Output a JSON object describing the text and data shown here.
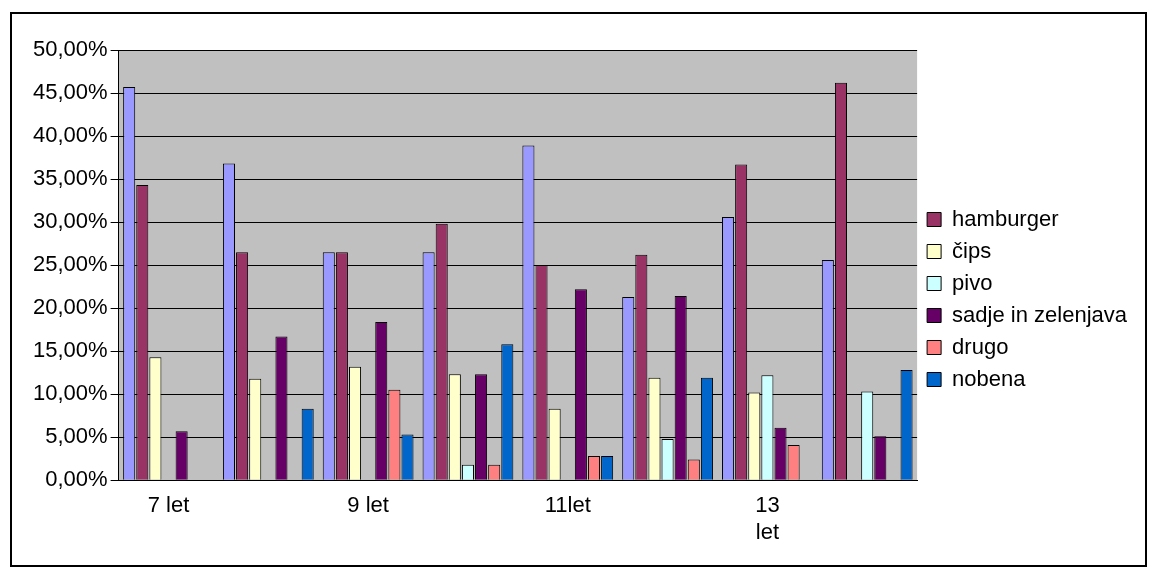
{
  "chart_data": {
    "type": "bar",
    "categories": [
      "7 let",
      null,
      "9 let",
      null,
      "11let",
      null,
      "13 let",
      null
    ],
    "series": [
      {
        "color": "#9999ff",
        "values": [
          45.7,
          36.8,
          26.5,
          26.5,
          38.9,
          21.3,
          30.6,
          25.6
        ]
      },
      {
        "name": "hamburger",
        "color": "#993366",
        "values": [
          34.3,
          26.5,
          26.5,
          29.8,
          25.0,
          26.2,
          36.7,
          46.2
        ]
      },
      {
        "name": "čips",
        "color": "#ffffcc",
        "values": [
          14.3,
          11.8,
          13.2,
          12.3,
          8.3,
          11.9,
          10.2,
          0
        ]
      },
      {
        "name": "pivo",
        "color": "#ccffff",
        "values": [
          0,
          0,
          0,
          1.8,
          0,
          4.8,
          12.2,
          10.3
        ]
      },
      {
        "name": "sadje in zelenjava",
        "color": "#660066",
        "values": [
          5.7,
          16.7,
          18.4,
          12.3,
          22.2,
          21.4,
          6.1,
          5.1
        ]
      },
      {
        "name": "drugo",
        "color": "#ff8080",
        "values": [
          0,
          0,
          10.5,
          1.8,
          2.8,
          2.4,
          4.1,
          0
        ]
      },
      {
        "name": "nobena",
        "color": "#0066cc",
        "values": [
          0,
          8.3,
          5.3,
          15.8,
          2.8,
          11.9,
          0,
          12.8
        ]
      }
    ],
    "ylim": [
      0,
      50
    ],
    "yticks": [
      {
        "value": 0,
        "label": "0,00%"
      },
      {
        "value": 5,
        "label": "5,00%"
      },
      {
        "value": 10,
        "label": "10,00%"
      },
      {
        "value": 15,
        "label": "15,00%"
      },
      {
        "value": 20,
        "label": "20,00%"
      },
      {
        "value": 25,
        "label": "25,00%"
      },
      {
        "value": 30,
        "label": "30,00%"
      },
      {
        "value": 35,
        "label": "35,00%"
      },
      {
        "value": 40,
        "label": "40,00%"
      },
      {
        "value": 45,
        "label": "45,00%"
      },
      {
        "value": 50,
        "label": "50,00%"
      }
    ],
    "grid": "y",
    "legend": "right"
  }
}
